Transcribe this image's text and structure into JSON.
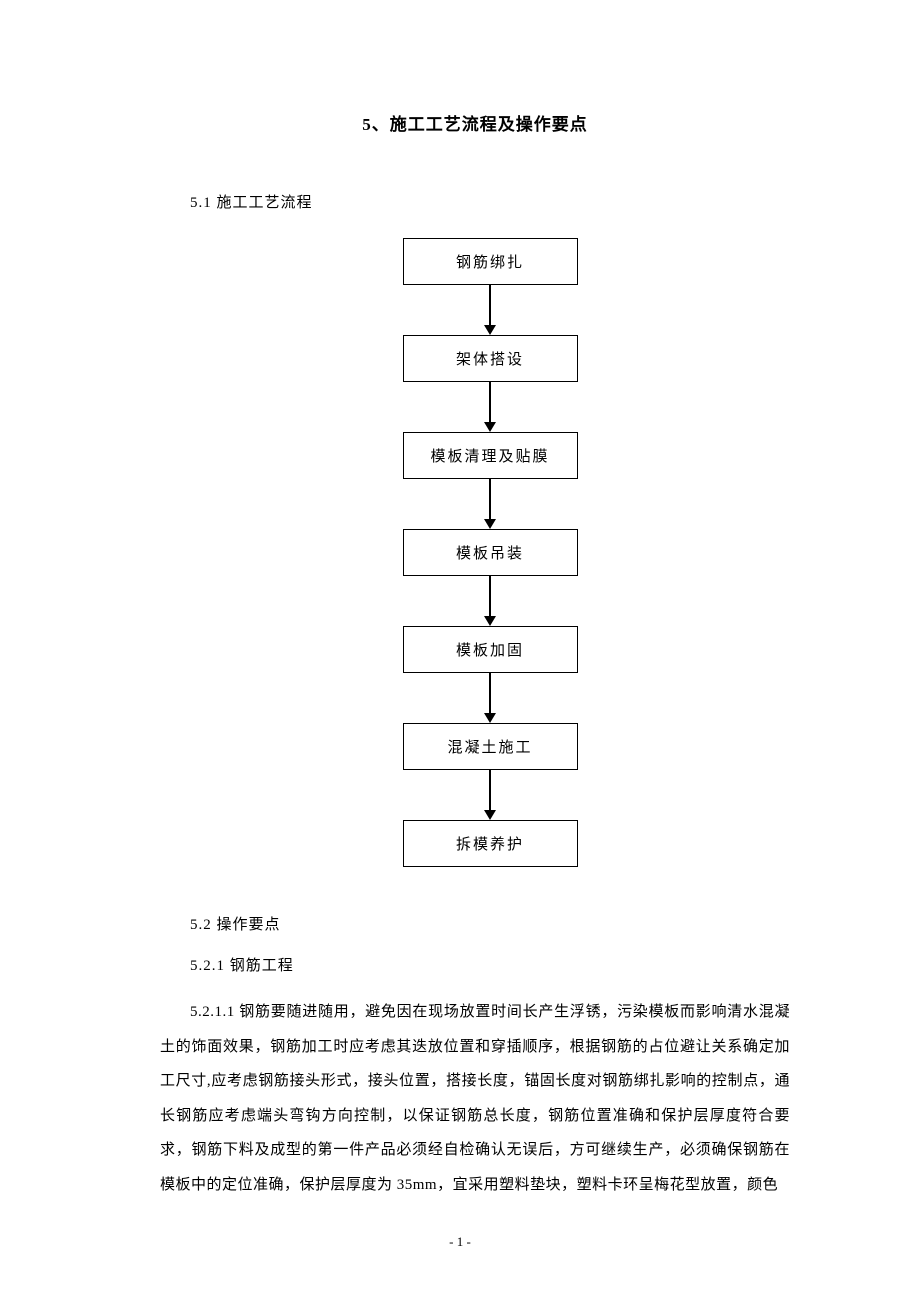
{
  "document": {
    "title": "5、施工工艺流程及操作要点",
    "section1": {
      "heading": "5.1 施工工艺流程",
      "flowchart": {
        "type": "flowchart",
        "direction": "vertical",
        "nodes": [
          {
            "label": "钢筋绑扎"
          },
          {
            "label": "架体搭设"
          },
          {
            "label": "模板清理及贴膜"
          },
          {
            "label": "模板吊装"
          },
          {
            "label": "模板加固"
          },
          {
            "label": "混凝土施工"
          },
          {
            "label": "拆模养护"
          }
        ],
        "node_border_color": "#000000",
        "node_background_color": "#ffffff",
        "node_min_width": 175,
        "node_padding": 12,
        "node_fontsize": 15,
        "arrow_color": "#000000",
        "arrow_line_width": 2,
        "arrow_height": 50,
        "arrow_head_size": 10
      }
    },
    "section2": {
      "heading": "5.2 操作要点",
      "subsection": {
        "heading": "5.2.1 钢筋工程",
        "paragraph": "5.2.1.1 钢筋要随进随用，避免因在现场放置时间长产生浮锈，污染模板而影响清水混凝土的饰面效果，钢筋加工时应考虑其迭放位置和穿插顺序，根据钢筋的占位避让关系确定加工尺寸,应考虑钢筋接头形式，接头位置，搭接长度，锚固长度对钢筋绑扎影响的控制点，通长钢筋应考虑端头弯钩方向控制，以保证钢筋总长度，钢筋位置准确和保护层厚度符合要求，钢筋下料及成型的第一件产品必须经自检确认无误后，方可继续生产，必须确保钢筋在模板中的定位准确，保护层厚度为 35mm，宜采用塑料垫块，塑料卡环呈梅花型放置，颜色"
      }
    },
    "page_number": "- 1 -",
    "colors": {
      "background": "#ffffff",
      "text": "#000000",
      "border": "#000000"
    },
    "typography": {
      "font_family": "SimSun",
      "title_fontsize": 17,
      "body_fontsize": 15,
      "page_number_fontsize": 13,
      "line_height": 2.3
    }
  }
}
